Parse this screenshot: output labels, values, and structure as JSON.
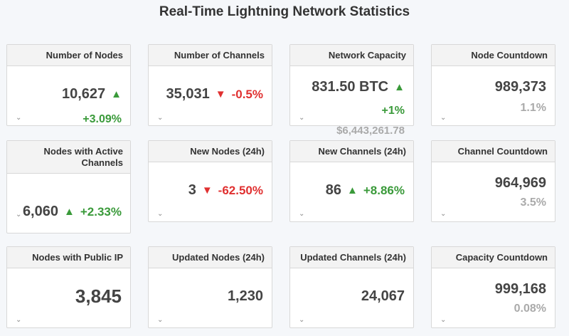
{
  "page": {
    "title": "Real-Time Lightning Network Statistics"
  },
  "colors": {
    "up": "#3a9a3a",
    "down": "#e03030",
    "muted": "#aaaaaa",
    "header_bg": "#f3f3f3"
  },
  "icons": {
    "expand": "chevron-down-icon",
    "up": "arrow-up-icon",
    "down": "arrow-down-icon"
  },
  "cards": {
    "nodes": {
      "title": "Number of Nodes",
      "value": "10,627",
      "change": "+3.09%"
    },
    "channels": {
      "title": "Number of Channels",
      "value": "35,031",
      "change": "-0.5%"
    },
    "capacity": {
      "title": "Network Capacity",
      "value": "831.50 BTC",
      "change": "+1%",
      "usd": "$6,443,261.78"
    },
    "node_countdown": {
      "title": "Node Countdown",
      "value": "989,373",
      "percent": "1.1%"
    },
    "active_nodes": {
      "title": "Nodes with Active Channels",
      "value": "6,060",
      "change": "+2.33%"
    },
    "new_nodes": {
      "title": "New Nodes (24h)",
      "value": "3",
      "change": "-62.50%"
    },
    "new_channels": {
      "title": "New Channels (24h)",
      "value": "86",
      "change": "+8.86%"
    },
    "channel_countdown": {
      "title": "Channel Countdown",
      "value": "964,969",
      "percent": "3.5%"
    },
    "public_ip": {
      "title": "Nodes with Public IP",
      "value": "3,845"
    },
    "updated_nodes": {
      "title": "Updated Nodes (24h)",
      "value": "1,230"
    },
    "updated_channels": {
      "title": "Updated Channels (24h)",
      "value": "24,067"
    },
    "capacity_countdown": {
      "title": "Capacity Countdown",
      "value": "999,168",
      "percent": "0.08%"
    }
  }
}
